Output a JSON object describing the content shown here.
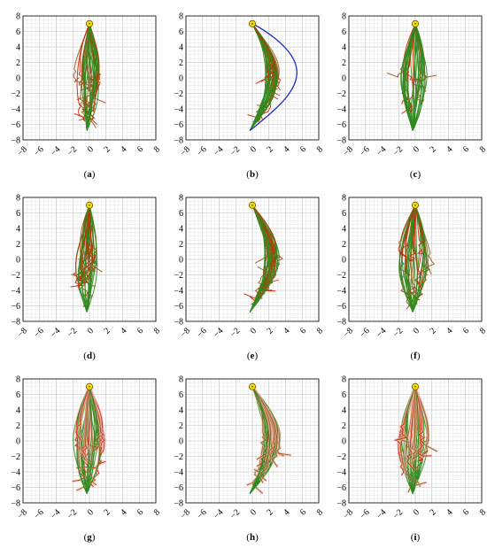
{
  "chart_data": {
    "type": "line",
    "layout": "3x3 grid",
    "x_ticks": [
      -8,
      -6,
      -4,
      -2,
      0,
      2,
      4,
      6,
      8
    ],
    "y_ticks": [
      -8,
      -6,
      -4,
      -2,
      0,
      2,
      4,
      6,
      8
    ],
    "xlim": [
      -8,
      8
    ],
    "ylim": [
      -8,
      8
    ],
    "grid": true,
    "colors": {
      "success": "#2e8b1e",
      "failure": "#cc2200",
      "reference": "#1f2fbf",
      "marker": "#f2e300"
    },
    "panels": [
      {
        "label": "(a)",
        "start": [
          0,
          7
        ],
        "shape": "straight",
        "spread": 1.6,
        "n_trajectories": 40,
        "end": [
          -0.3,
          -6.8
        ]
      },
      {
        "label": "(b)",
        "start": [
          0,
          7
        ],
        "shape": "arc",
        "spread": 1.0,
        "n_trajectories": 40,
        "end": [
          -0.3,
          -6.8
        ],
        "arc_peak_x": 2.5,
        "reference_arc_peak_x": 5.5
      },
      {
        "label": "(c)",
        "start": [
          0,
          7
        ],
        "shape": "straight",
        "spread": 1.5,
        "n_trajectories": 40,
        "end": [
          -0.3,
          -6.8
        ]
      },
      {
        "label": "(d)",
        "start": [
          0,
          7
        ],
        "shape": "straight",
        "spread": 1.3,
        "n_trajectories": 40,
        "end": [
          -0.3,
          -6.8
        ]
      },
      {
        "label": "(e)",
        "start": [
          0,
          7
        ],
        "shape": "arc",
        "spread": 1.1,
        "n_trajectories": 40,
        "end": [
          -0.3,
          -6.8
        ],
        "arc_peak_x": 2.5
      },
      {
        "label": "(f)",
        "start": [
          0,
          7
        ],
        "shape": "straight",
        "spread": 1.8,
        "n_trajectories": 40,
        "end": [
          -0.3,
          -6.8
        ]
      },
      {
        "label": "(g)",
        "start": [
          0,
          7
        ],
        "shape": "straight",
        "spread": 1.7,
        "n_trajectories": 40,
        "end": [
          -0.3,
          -6.8
        ]
      },
      {
        "label": "(h)",
        "start": [
          0,
          7
        ],
        "shape": "arc",
        "spread": 1.3,
        "n_trajectories": 40,
        "end": [
          -0.3,
          -6.8
        ],
        "arc_peak_x": 2.5
      },
      {
        "label": "(i)",
        "start": [
          0,
          7
        ],
        "shape": "straight",
        "spread": 1.8,
        "n_trajectories": 40,
        "end": [
          -0.3,
          -6.8
        ]
      }
    ]
  }
}
